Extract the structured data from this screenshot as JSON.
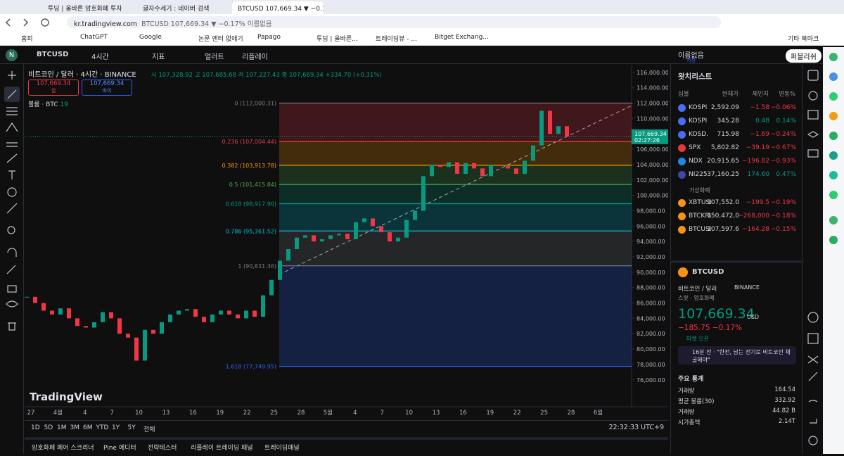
{
  "browser": {
    "tabs": [
      "투딩 | 올바른 암호화폐 투자",
      "글자수세기 : 네이버 검색",
      "BTCUSD 107,669.34 ▼ −0.17% 이름없음"
    ],
    "url": "kr.tradingview.com",
    "url_title": "BTCUSD 107,669.34 ▼ −0.17% 이름없음",
    "bookmarks": [
      "홈피",
      "ChatGPT",
      "Google",
      "논문 엔터 없애기",
      "Papago",
      "투딩 | 올바른...",
      "트레이딩뷰 - ...",
      "Bitget Exchang..."
    ],
    "other_bookmarks": "기타 북마크"
  },
  "toolbar": {
    "symbol": "BTCUSD",
    "interval": "4시간",
    "indicators": "지표",
    "alert": "얼러트",
    "replay": "리플레이",
    "layout": "이름없음",
    "saved": "저장",
    "publish": "퍼블리쉬"
  },
  "chart": {
    "type": "candlestick",
    "title": "비트코인 / 달러 · 4시간 · BINANCE",
    "ohlc": "시 107,328.92 고 107,685.68 저 107,227.43 종 107,669.34 +334.70 (+0.31%)",
    "sell": {
      "price": "107,669.34",
      "label": "셀"
    },
    "buy": {
      "price": "107,669.34",
      "label": "바이"
    },
    "volume_label": "볼륨 · BTC",
    "volume_value": "19",
    "watermark": "TradingView",
    "last_price": {
      "value": 107669.34,
      "label": "107,669.34"
    },
    "countdown": "02:27:26",
    "ylim": [
      72500,
      116900
    ],
    "yticks": [
      {
        "value": 76000,
        "label": "76,000.00"
      },
      {
        "value": 78000,
        "label": "78,000.00"
      },
      {
        "value": 80000,
        "label": "80,000.00"
      },
      {
        "value": 82000,
        "label": "82,000.00"
      },
      {
        "value": 84000,
        "label": "84,000.00"
      },
      {
        "value": 86000,
        "label": "86,000.00"
      },
      {
        "value": 88000,
        "label": "88,000.00"
      },
      {
        "value": 90000,
        "label": "90,000.00"
      },
      {
        "value": 92000,
        "label": "92,000.00"
      },
      {
        "value": 94000,
        "label": "94,000.00"
      },
      {
        "value": 96000,
        "label": "96,000.00"
      },
      {
        "value": 98000,
        "label": "98,000.00"
      },
      {
        "value": 100000,
        "label": "100,000.00"
      },
      {
        "value": 102000,
        "label": "102,000.00"
      },
      {
        "value": 104000,
        "label": "104,000.00"
      },
      {
        "value": 106000,
        "label": "106,000.00"
      },
      {
        "value": 108000,
        "label": "108,000.00"
      },
      {
        "value": 110000,
        "label": "110,000.00"
      },
      {
        "value": 112000,
        "label": "112,000.00"
      },
      {
        "value": 114000,
        "label": "114,000.00"
      },
      {
        "value": 116000,
        "label": "116,000.00"
      }
    ],
    "categories": [
      "27",
      "4월",
      "4",
      "7",
      "10",
      "13",
      "16",
      "19",
      "22",
      "25",
      "28",
      "5월",
      "4",
      "7",
      "10",
      "13",
      "16",
      "19",
      "22",
      "25",
      "28",
      "6월"
    ],
    "closes": [
      86800,
      86000,
      85000,
      84500,
      85300,
      84000,
      83000,
      82800,
      83500,
      84800,
      84000,
      82000,
      81500,
      78500,
      82500,
      82000,
      83500,
      84500,
      85000,
      85200,
      84200,
      83500,
      84500,
      85000,
      84500,
      84000,
      85000,
      84200,
      87000,
      89000,
      91500,
      93000,
      94500,
      94800,
      94000,
      94300,
      94800,
      95000,
      94300,
      96500,
      97000,
      96000,
      95200,
      94000,
      94500,
      96800,
      98000,
      102500,
      104000,
      103700,
      104300,
      102800,
      104200,
      103500,
      102500,
      104000,
      103800,
      103500,
      102800,
      104500,
      106500,
      111000,
      108000,
      109000,
      107669.34
    ],
    "up_color": "#089981",
    "down_color": "#f23645",
    "fib_levels": [
      {
        "label": "0 (112,000.31)",
        "price": 112000.31,
        "color": "#787b86"
      },
      {
        "label": "0.236 (107,004.44)",
        "price": 107004.44,
        "color": "#f23645"
      },
      {
        "label": "0.382 (103,913.78)",
        "price": 103913.78,
        "color": "#ff9800"
      },
      {
        "label": "0.5 (101,415.84)",
        "price": 101415.84,
        "color": "#4caf50"
      },
      {
        "label": "0.618 (98,917.90)",
        "price": 98917.9,
        "color": "#089981"
      },
      {
        "label": "0.786 (95,361.52)",
        "price": 95361.52,
        "color": "#00bcd4"
      },
      {
        "label": "1 (90,831.36)",
        "price": 90831.36,
        "color": "#787b86"
      },
      {
        "label": "1.618 (77,749.95)",
        "price": 77749.95,
        "color": "#2962ff"
      }
    ],
    "grid": false
  },
  "ranges": [
    "1D",
    "5D",
    "1M",
    "3M",
    "6M",
    "YTD",
    "1Y",
    "5Y",
    "전체"
  ],
  "clock": "22:32:33 UTC+9",
  "bottom_tabs": [
    "암호화폐 페어 스크리너",
    "Pine 에디터",
    "전략테스터",
    "리플레이 트레이딩 패널",
    "트레이딩패널"
  ],
  "watchlist": {
    "title": "왓치리스트",
    "columns": [
      "심볼",
      "현재가",
      "체인지",
      "변동%"
    ],
    "rows": [
      {
        "symbol": "KOSPI",
        "price": "2,592.09",
        "change": "−1.58",
        "pct": "−0.06%",
        "icon": "#4a6cf7"
      },
      {
        "symbol": "KOSPI",
        "price": "345.28",
        "change": "0.48",
        "pct": "0.14%",
        "icon": "#4a6cf7"
      },
      {
        "symbol": "KOSD.",
        "price": "715.98",
        "change": "−1.69",
        "pct": "−0.24%",
        "icon": "#4a6cf7"
      },
      {
        "symbol": "SPX",
        "price": "5,802.82",
        "change": "−39.19",
        "pct": "−0.67%",
        "icon": "#e53935"
      },
      {
        "symbol": "NDX",
        "price": "20,915.65",
        "change": "−196.82",
        "pct": "−0.93%",
        "icon": "#1e88e5"
      },
      {
        "symbol": "NI225",
        "price": "37,160.25",
        "change": "174.60",
        "pct": "0.47%",
        "icon": "#3949ab"
      }
    ],
    "section": "가상화폐",
    "crypto_rows": [
      {
        "symbol": "XBTUSI",
        "price": "107,552.0",
        "change": "−199.5",
        "pct": "−0.19%",
        "icon": "#f7931a"
      },
      {
        "symbol": "BTCKRV",
        "price": "150,472,0",
        "change": "−268,000",
        "pct": "−0.18%",
        "icon": "#f7931a"
      },
      {
        "symbol": "BTCUSI",
        "price": "107,597.6",
        "change": "−164.28",
        "pct": "−0.15%",
        "icon": "#f7931a"
      }
    ]
  },
  "symbol_panel": {
    "symbol": "BTCUSD",
    "name": "비트코인 / 달러",
    "exchange": "BINANCE",
    "kind": "스팟 · 암호화폐",
    "price": "107,669.34",
    "currency": "USD",
    "change": "−185.75 −0.17%",
    "status": "마켓 오픈",
    "news": "16분 전 · \"한전, 남는 전기로 비트코인 채굴해야\"",
    "stats_title": "주요 통계",
    "stats": [
      {
        "label": "거래량",
        "value": "164.54"
      },
      {
        "label": "평균 볼륨(30)",
        "value": "332.92"
      },
      {
        "label": "거래량",
        "value": "44.82 B"
      },
      {
        "label": "시가총액",
        "value": "2.14T"
      }
    ]
  }
}
